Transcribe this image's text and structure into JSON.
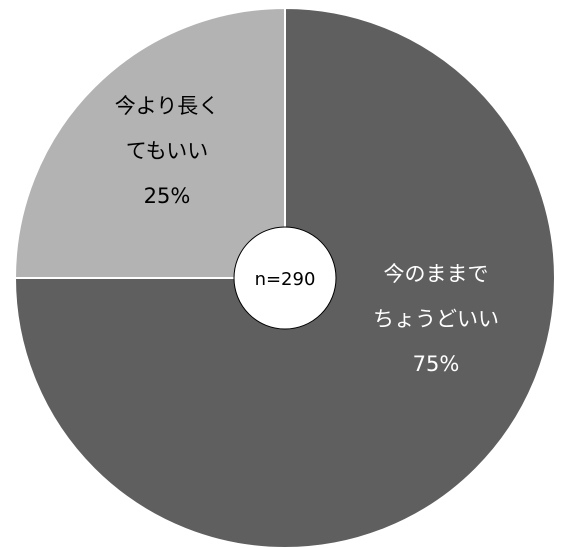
{
  "chart_data": {
    "type": "pie",
    "slices": [
      {
        "label_lines": [
          "今のままで",
          "ちょうどいい"
        ],
        "value": 75,
        "value_label": "75%",
        "color": "#5f5f5f",
        "text_color": "#ffffff"
      },
      {
        "label_lines": [
          "今より長く",
          "てもいい"
        ],
        "value": 25,
        "value_label": "25%",
        "color": "#b3b3b3",
        "text_color": "#000000"
      }
    ],
    "center_label": "n=290",
    "start": "12 o'clock",
    "direction": "clockwise"
  }
}
